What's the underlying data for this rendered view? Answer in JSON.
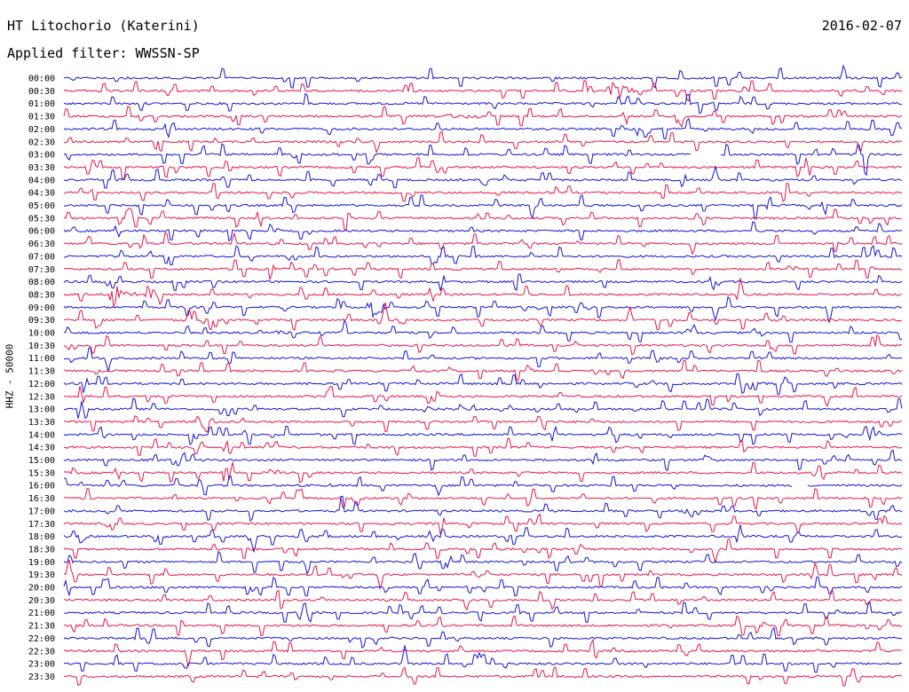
{
  "header": {
    "station": "HT Litochorio (Katerini)",
    "date": "2016-02-07",
    "filter": "Applied filter: WWSSN-SP"
  },
  "colors": {
    "trace_a": "#1414d4",
    "trace_b": "#e8164a"
  },
  "chart_data": {
    "type": "line",
    "title": "HT Litochorio (Katerini)",
    "subtitle": "Applied filter: WWSSN-SP",
    "ylabel": "HHZ - 50000",
    "xlabel": "",
    "x_range_minutes": [
      0,
      30
    ],
    "grid": false,
    "rows": [
      "00:00",
      "00:30",
      "01:00",
      "01:30",
      "02:00",
      "02:30",
      "03:00",
      "03:30",
      "04:00",
      "04:30",
      "05:00",
      "05:30",
      "06:00",
      "06:30",
      "07:00",
      "07:30",
      "08:00",
      "08:30",
      "09:00",
      "09:30",
      "10:00",
      "10:30",
      "11:00",
      "11:30",
      "12:00",
      "12:30",
      "13:00",
      "13:30",
      "14:00",
      "14:30",
      "15:00",
      "15:30",
      "16:00",
      "16:30",
      "17:00",
      "17:30",
      "18:00",
      "18:30",
      "19:00",
      "19:30",
      "20:00",
      "20:30",
      "21:00",
      "21:30",
      "22:00",
      "22:30",
      "23:00",
      "23:30"
    ],
    "events": [
      {
        "row": "00:30",
        "minute": 19.5,
        "amplitude": 14,
        "duration": 1.2
      },
      {
        "row": "01:30",
        "minute": 13.5,
        "amplitude": 4,
        "duration": 2.5
      },
      {
        "row": "01:30",
        "minute": 21.8,
        "amplitude": 24,
        "duration": 0.8
      },
      {
        "row": "02:00",
        "minute": 20.4,
        "amplitude": 9,
        "duration": 0.7
      },
      {
        "row": "03:00",
        "minute": 9.5,
        "amplitude": 5,
        "duration": 0.6
      },
      {
        "row": "08:30",
        "minute": 1.6,
        "amplitude": 18,
        "duration": 1.0
      },
      {
        "row": "08:30",
        "minute": 2.9,
        "amplitude": 15,
        "duration": 0.8
      },
      {
        "row": "09:00",
        "minute": 10.8,
        "amplitude": 16,
        "duration": 1.0
      },
      {
        "row": "10:00",
        "minute": 7.5,
        "amplitude": 3,
        "duration": 1.5
      },
      {
        "row": "13:00",
        "minute": 12.9,
        "amplitude": 10,
        "duration": 0.4
      },
      {
        "row": "15:30",
        "minute": 5.6,
        "amplitude": 10,
        "duration": 0.8
      },
      {
        "row": "17:00",
        "minute": 22.0,
        "amplitude": 7,
        "duration": 1.0
      }
    ],
    "gaps": [
      {
        "row": "03:00",
        "start_minute": 22.5,
        "end_minute": 23.5
      },
      {
        "row": "16:00",
        "start_minute": 26.1,
        "end_minute": 26.6
      }
    ]
  }
}
